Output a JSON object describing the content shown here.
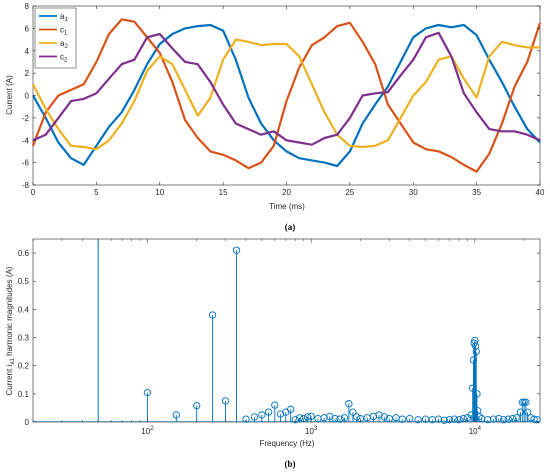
{
  "panels": {
    "a_label": "(a)",
    "b_label": "(b)"
  },
  "chart_data": [
    {
      "type": "line",
      "xlabel": "Time (ms)",
      "ylabel": "Current (A)",
      "xlim": [
        0,
        40
      ],
      "ylim": [
        -8,
        8
      ],
      "xticks": [
        0,
        5,
        10,
        15,
        20,
        25,
        30,
        35,
        40
      ],
      "yticks": [
        -8,
        -6,
        -4,
        -2,
        0,
        2,
        4,
        6,
        8
      ],
      "legend_position": "top-left",
      "grid": false,
      "series": [
        {
          "name": "a",
          "sub": "1",
          "color": "#0072BD",
          "x": [
            0,
            1,
            2,
            3,
            4,
            5,
            6,
            7,
            8,
            9,
            10,
            11,
            12,
            13,
            14,
            15,
            16,
            17,
            18,
            19,
            20,
            21,
            22,
            23,
            24,
            25,
            26,
            27,
            28,
            29,
            30,
            31,
            32,
            33,
            34,
            35,
            36,
            37,
            38,
            39,
            40
          ],
          "y": [
            0,
            -2,
            -4.2,
            -5.6,
            -6.2,
            -4.5,
            -2.8,
            -1.5,
            0.5,
            2.8,
            4.6,
            5.5,
            6,
            6.2,
            6.3,
            5.8,
            3.2,
            -0.2,
            -2.5,
            -4,
            -5,
            -5.6,
            -5.8,
            -6,
            -6.3,
            -5,
            -2.5,
            -0.8,
            0.8,
            3,
            5.2,
            6,
            6.3,
            6.1,
            6.3,
            5.4,
            3.2,
            1.2,
            -1,
            -3,
            -4.2
          ]
        },
        {
          "name": "c",
          "sub": "1",
          "color": "#D95319",
          "x": [
            0,
            1,
            2,
            3,
            4,
            5,
            6,
            7,
            8,
            9,
            10,
            11,
            12,
            13,
            14,
            15,
            16,
            17,
            18,
            19,
            20,
            21,
            22,
            23,
            24,
            25,
            26,
            27,
            28,
            29,
            30,
            31,
            32,
            33,
            34,
            35,
            36,
            37,
            38,
            39,
            40
          ],
          "y": [
            -4.5,
            -1.5,
            0,
            0.5,
            1,
            3,
            5.5,
            6.8,
            6.6,
            5.2,
            3.8,
            1.2,
            -2.2,
            -3.8,
            -5,
            -5.3,
            -5.8,
            -6.5,
            -6,
            -4.5,
            -0.5,
            2.5,
            4.5,
            5.2,
            6.2,
            6.5,
            4.8,
            2.8,
            -0.8,
            -2.5,
            -4.2,
            -4.8,
            -5,
            -5.5,
            -6.2,
            -6.8,
            -5.2,
            -2.5,
            0.8,
            3,
            6.5
          ]
        },
        {
          "name": "a",
          "sub": "2",
          "color": "#EDB120",
          "x": [
            0,
            1,
            2,
            3,
            4,
            5,
            6,
            7,
            8,
            9,
            10,
            11,
            12,
            13,
            14,
            15,
            16,
            17,
            18,
            19,
            20,
            21,
            22,
            23,
            24,
            25,
            26,
            27,
            28,
            29,
            30,
            31,
            32,
            33,
            34,
            35,
            36,
            37,
            38,
            39,
            40
          ],
          "y": [
            1,
            -1.2,
            -3,
            -4.5,
            -4.6,
            -4.8,
            -4,
            -2.5,
            -0.5,
            2.2,
            3.5,
            2.8,
            0.5,
            -1.8,
            -0.2,
            3.2,
            5,
            4.8,
            4.5,
            4.6,
            4.6,
            3.5,
            1,
            -1.5,
            -3.5,
            -4.5,
            -4.6,
            -4.5,
            -4,
            -2,
            0,
            1.2,
            3.2,
            3.5,
            1.5,
            -0.2,
            3.5,
            4.8,
            4.5,
            4.3,
            4.3
          ]
        },
        {
          "name": "c",
          "sub": "2",
          "color": "#7E2F8E",
          "x": [
            0,
            1,
            2,
            3,
            4,
            5,
            6,
            7,
            8,
            9,
            10,
            11,
            12,
            13,
            14,
            15,
            16,
            17,
            18,
            19,
            20,
            21,
            22,
            23,
            24,
            25,
            26,
            27,
            28,
            29,
            30,
            31,
            32,
            33,
            34,
            35,
            36,
            37,
            38,
            39,
            40
          ],
          "y": [
            -4,
            -3.5,
            -2,
            -0.5,
            -0.3,
            0.2,
            1.5,
            2.8,
            3.2,
            5.2,
            5.5,
            4.2,
            3,
            2.8,
            1.2,
            -0.8,
            -2.5,
            -3,
            -3.5,
            -3.2,
            -4,
            -4.2,
            -4.4,
            -3.8,
            -3.5,
            -2,
            0,
            0.2,
            0.3,
            1.8,
            3.2,
            5.2,
            5.6,
            3.5,
            0.2,
            -1.5,
            -3,
            -3.2,
            -3.2,
            -3.5,
            -4
          ]
        }
      ]
    },
    {
      "type": "scatter",
      "xlabel": "Frequency (Hz)",
      "ylabel_parts": [
        "Current i",
        "a1",
        " harmonic magnitudes (A)"
      ],
      "xscale": "log",
      "xlim": [
        20,
        25000
      ],
      "ylim": [
        0,
        0.65
      ],
      "xticks": [
        100,
        1000,
        10000
      ],
      "xtick_labels": [
        {
          "base": "10",
          "exp": "2"
        },
        {
          "base": "10",
          "exp": "3"
        },
        {
          "base": "10",
          "exp": "4"
        }
      ],
      "yticks": [
        0,
        0.1,
        0.2,
        0.3,
        0.4,
        0.5,
        0.6
      ],
      "ytick_labels": [
        "0",
        "0.1",
        "0.2",
        "0.3",
        "0.4",
        "0.5",
        "0.6"
      ],
      "fundamental": {
        "x": 50,
        "y": 0.65
      },
      "color": "#0072BD",
      "stems": [
        {
          "x": 100,
          "y": 0.104
        },
        {
          "x": 150,
          "y": 0.025
        },
        {
          "x": 200,
          "y": 0.058
        },
        {
          "x": 250,
          "y": 0.38
        },
        {
          "x": 300,
          "y": 0.075
        },
        {
          "x": 350,
          "y": 0.61
        },
        {
          "x": 400,
          "y": 0.01
        },
        {
          "x": 450,
          "y": 0.018
        },
        {
          "x": 500,
          "y": 0.025
        },
        {
          "x": 550,
          "y": 0.035
        },
        {
          "x": 600,
          "y": 0.06
        },
        {
          "x": 650,
          "y": 0.028
        },
        {
          "x": 700,
          "y": 0.035
        },
        {
          "x": 750,
          "y": 0.045
        },
        {
          "x": 800,
          "y": 0.008
        },
        {
          "x": 850,
          "y": 0.015
        },
        {
          "x": 900,
          "y": 0.012
        },
        {
          "x": 950,
          "y": 0.018
        },
        {
          "x": 1000,
          "y": 0.02
        },
        {
          "x": 1100,
          "y": 0.012
        },
        {
          "x": 1200,
          "y": 0.015
        },
        {
          "x": 1300,
          "y": 0.02
        },
        {
          "x": 1400,
          "y": 0.012
        },
        {
          "x": 1500,
          "y": 0.01
        },
        {
          "x": 1600,
          "y": 0.015
        },
        {
          "x": 1700,
          "y": 0.065
        },
        {
          "x": 1800,
          "y": 0.035
        },
        {
          "x": 1900,
          "y": 0.018
        },
        {
          "x": 2000,
          "y": 0.012
        },
        {
          "x": 2200,
          "y": 0.015
        },
        {
          "x": 2400,
          "y": 0.02
        },
        {
          "x": 2600,
          "y": 0.025
        },
        {
          "x": 2800,
          "y": 0.018
        },
        {
          "x": 3000,
          "y": 0.012
        },
        {
          "x": 3300,
          "y": 0.015
        },
        {
          "x": 3600,
          "y": 0.01
        },
        {
          "x": 4000,
          "y": 0.012
        },
        {
          "x": 4500,
          "y": 0.008
        },
        {
          "x": 5000,
          "y": 0.01
        },
        {
          "x": 5500,
          "y": 0.008
        },
        {
          "x": 6000,
          "y": 0.01
        },
        {
          "x": 6500,
          "y": 0.006
        },
        {
          "x": 7000,
          "y": 0.008
        },
        {
          "x": 7500,
          "y": 0.01
        },
        {
          "x": 8000,
          "y": 0.008
        },
        {
          "x": 8500,
          "y": 0.012
        },
        {
          "x": 9000,
          "y": 0.015
        },
        {
          "x": 9500,
          "y": 0.025
        },
        {
          "x": 9700,
          "y": 0.12
        },
        {
          "x": 9800,
          "y": 0.22
        },
        {
          "x": 9900,
          "y": 0.28
        },
        {
          "x": 10000,
          "y": 0.29
        },
        {
          "x": 10100,
          "y": 0.27
        },
        {
          "x": 10200,
          "y": 0.25
        },
        {
          "x": 10300,
          "y": 0.1
        },
        {
          "x": 10400,
          "y": 0.04
        },
        {
          "x": 10600,
          "y": 0.02
        },
        {
          "x": 11000,
          "y": 0.012
        },
        {
          "x": 12000,
          "y": 0.008
        },
        {
          "x": 13000,
          "y": 0.01
        },
        {
          "x": 14000,
          "y": 0.012
        },
        {
          "x": 15000,
          "y": 0.008
        },
        {
          "x": 16000,
          "y": 0.01
        },
        {
          "x": 17000,
          "y": 0.012
        },
        {
          "x": 18000,
          "y": 0.015
        },
        {
          "x": 19000,
          "y": 0.035
        },
        {
          "x": 19500,
          "y": 0.07
        },
        {
          "x": 20000,
          "y": 0.07
        },
        {
          "x": 20500,
          "y": 0.07
        },
        {
          "x": 21000,
          "y": 0.035
        },
        {
          "x": 22000,
          "y": 0.015
        },
        {
          "x": 23000,
          "y": 0.01
        },
        {
          "x": 24000,
          "y": 0.008
        }
      ]
    }
  ]
}
